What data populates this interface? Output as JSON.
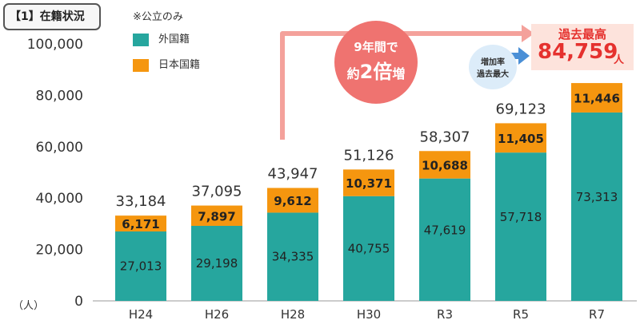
{
  "section_tag": "【1】在籍状況",
  "public_note": "※公立のみ",
  "unit_label": "（人）",
  "circle": {
    "line1": "9年間で",
    "prefix": "約",
    "big": "2倍",
    "suffix": "増"
  },
  "growth_badge": {
    "line1": "増加率",
    "line2": "過去最大"
  },
  "record": {
    "label": "過去最高",
    "value": "84,759",
    "unit": "人"
  },
  "colors": {
    "foreign": "#26a69e",
    "japanese": "#f5960f",
    "arrow": "#f4a19b",
    "badge": "#ef7370",
    "blue_arrow": "#4a8fd6"
  },
  "chart_data": {
    "type": "bar",
    "stacked": true,
    "categories": [
      "H24",
      "H26",
      "H28",
      "H30",
      "R3",
      "R5",
      "R7"
    ],
    "series": [
      {
        "name": "外国籍",
        "values": [
          27013,
          29198,
          34335,
          40755,
          47619,
          57718,
          73313
        ]
      },
      {
        "name": "日本国籍",
        "values": [
          6171,
          7897,
          9612,
          10371,
          10688,
          11405,
          11446
        ]
      }
    ],
    "series_labels": [
      [
        "27,013",
        "29,198",
        "34,335",
        "40,755",
        "47,619",
        "57,718",
        "73,313"
      ],
      [
        "6,171",
        "7,897",
        "9,612",
        "10,371",
        "10,688",
        "11,405",
        "11,446"
      ]
    ],
    "totals": [
      33184,
      37095,
      43947,
      51126,
      58307,
      69123,
      84759
    ],
    "total_labels": [
      "33,184",
      "37,095",
      "43,947",
      "51,126",
      "58,307",
      "69,123",
      ""
    ],
    "ylim": [
      0,
      100000
    ],
    "yticks": [
      0,
      20000,
      40000,
      60000,
      80000,
      100000
    ],
    "ytick_labels": [
      "0",
      "20,000",
      "40,000",
      "60,000",
      "80,000",
      "100,000"
    ],
    "legend_position": "top-left",
    "grid": false
  }
}
